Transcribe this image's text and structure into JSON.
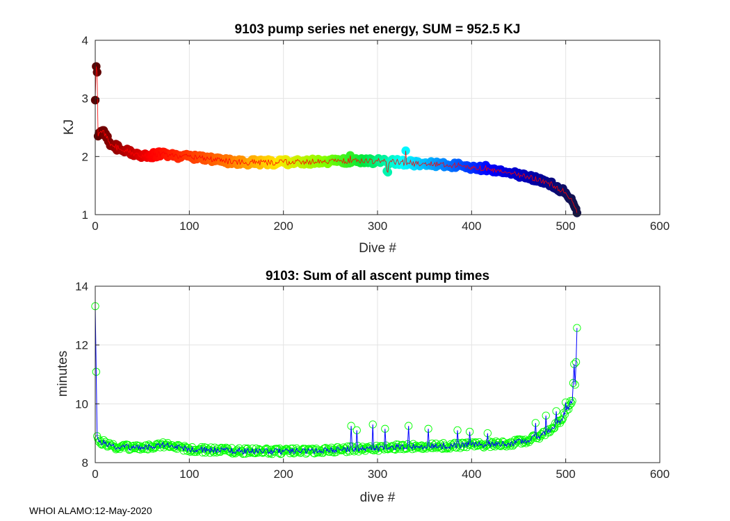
{
  "footer": "WHOI ALAMO:12-May-2020",
  "chart_data": [
    {
      "type": "scatter",
      "title": "9103 pump series net energy, SUM = 952.5 KJ",
      "xlabel": "Dive #",
      "ylabel": "KJ",
      "xlim": [
        0,
        600
      ],
      "ylim": [
        1,
        4
      ],
      "xticks": [
        "0",
        "100",
        "200",
        "300",
        "400",
        "500",
        "600"
      ],
      "yticks": [
        "1",
        "2",
        "3",
        "4"
      ],
      "grid": true,
      "marker": "filled circle colored by dive number (dark red to red to yellow to green to cyan to blue to dark navy)",
      "line_color": "#ff0000",
      "trend": [
        [
          0,
          2.97
        ],
        [
          1,
          3.55
        ],
        [
          2,
          3.45
        ],
        [
          3,
          2.35
        ],
        [
          5,
          2.42
        ],
        [
          8,
          2.45
        ],
        [
          12,
          2.32
        ],
        [
          15,
          2.25
        ],
        [
          20,
          2.18
        ],
        [
          30,
          2.1
        ],
        [
          40,
          2.05
        ],
        [
          50,
          2.03
        ],
        [
          60,
          2.02
        ],
        [
          70,
          2.05
        ],
        [
          80,
          2.02
        ],
        [
          100,
          2.0
        ],
        [
          120,
          1.96
        ],
        [
          140,
          1.92
        ],
        [
          160,
          1.9
        ],
        [
          180,
          1.9
        ],
        [
          200,
          1.9
        ],
        [
          220,
          1.91
        ],
        [
          240,
          1.92
        ],
        [
          260,
          1.92
        ],
        [
          280,
          1.93
        ],
        [
          300,
          1.92
        ],
        [
          320,
          1.91
        ],
        [
          340,
          1.88
        ],
        [
          360,
          1.87
        ],
        [
          380,
          1.85
        ],
        [
          400,
          1.82
        ],
        [
          420,
          1.78
        ],
        [
          440,
          1.73
        ],
        [
          460,
          1.65
        ],
        [
          480,
          1.55
        ],
        [
          490,
          1.48
        ],
        [
          500,
          1.38
        ],
        [
          505,
          1.28
        ],
        [
          510,
          1.12
        ],
        [
          512,
          1.03
        ]
      ],
      "noise": 0.05,
      "outliers": [
        [
          271,
          2.02
        ],
        [
          330,
          2.1
        ],
        [
          310,
          1.75
        ],
        [
          311,
          1.73
        ],
        [
          415,
          1.85
        ]
      ],
      "n_points": 513
    },
    {
      "type": "line",
      "title": "9103: Sum of all ascent pump times",
      "xlabel": "dive #",
      "ylabel": "minutes",
      "xlim": [
        0,
        600
      ],
      "ylim": [
        8,
        14
      ],
      "xticks": [
        "0",
        "100",
        "200",
        "300",
        "400",
        "500",
        "600"
      ],
      "yticks": [
        "8",
        "10",
        "12",
        "14"
      ],
      "grid": true,
      "line_color": "#0000ff",
      "marker_color": "#00ff00",
      "trend": [
        [
          0,
          13.32
        ],
        [
          2,
          8.9
        ],
        [
          5,
          8.75
        ],
        [
          10,
          8.65
        ],
        [
          20,
          8.55
        ],
        [
          40,
          8.5
        ],
        [
          60,
          8.55
        ],
        [
          70,
          8.62
        ],
        [
          80,
          8.55
        ],
        [
          100,
          8.45
        ],
        [
          150,
          8.4
        ],
        [
          200,
          8.38
        ],
        [
          240,
          8.4
        ],
        [
          260,
          8.45
        ],
        [
          300,
          8.5
        ],
        [
          350,
          8.55
        ],
        [
          400,
          8.6
        ],
        [
          440,
          8.65
        ],
        [
          460,
          8.75
        ],
        [
          475,
          8.95
        ],
        [
          485,
          9.15
        ],
        [
          495,
          9.45
        ],
        [
          500,
          9.7
        ],
        [
          504,
          9.95
        ],
        [
          507,
          10.1
        ],
        [
          509,
          11.35
        ],
        [
          510,
          10.65
        ],
        [
          511,
          11.42
        ],
        [
          512,
          12.58
        ]
      ],
      "noise": 0.1,
      "spikes": [
        [
          272,
          9.25
        ],
        [
          278,
          9.1
        ],
        [
          295,
          9.3
        ],
        [
          308,
          9.15
        ],
        [
          333,
          9.25
        ],
        [
          354,
          9.15
        ],
        [
          385,
          9.1
        ],
        [
          398,
          9.05
        ],
        [
          417,
          9.0
        ],
        [
          468,
          9.35
        ],
        [
          479,
          9.6
        ],
        [
          490,
          9.75
        ],
        [
          500,
          10.05
        ]
      ],
      "n_points": 513
    }
  ]
}
